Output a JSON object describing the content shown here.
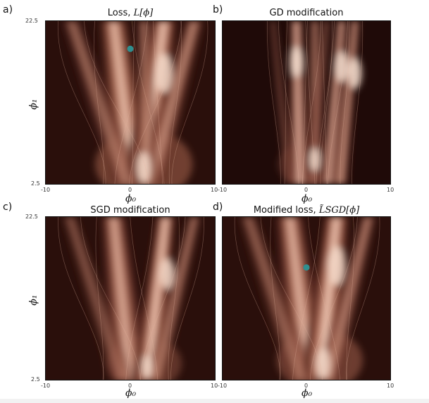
{
  "chart_data": [
    {
      "type": "heatmap",
      "letter": "a)",
      "title": "Loss, ",
      "title_math": "L[ϕ]",
      "xlabel": "ϕ₀",
      "ylabel": "ϕ₁",
      "xlim": [
        -10,
        10
      ],
      "ylim": [
        2.5,
        22.5
      ],
      "x_ticks": [
        "-10",
        "0",
        "10"
      ],
      "y_ticks": [
        "2.5",
        "22.5"
      ],
      "marker": {
        "x": 0,
        "y": 19.1,
        "color": "#2f8f8f"
      },
      "colormap": [
        "#2a0f0b",
        "#5a2a20",
        "#9a5a48",
        "#d8957c",
        "#f6dccb"
      ]
    },
    {
      "type": "heatmap",
      "letter": "b)",
      "title": "GD modification",
      "title_math": "",
      "xlabel": "ϕ₀",
      "ylabel": "",
      "xlim": [
        -10,
        10
      ],
      "ylim": [
        2.5,
        22.5
      ],
      "x_ticks": [
        "-10",
        "0",
        "10"
      ],
      "y_ticks": [],
      "colormap": [
        "#1f0a08",
        "#4a1f18",
        "#8a4a3a",
        "#d08870",
        "#f8e2d2"
      ]
    },
    {
      "type": "heatmap",
      "letter": "c)",
      "title": "SGD modification",
      "title_math": "",
      "xlabel": "ϕ₀",
      "ylabel": "ϕ₁",
      "xlim": [
        -10,
        10
      ],
      "ylim": [
        2.5,
        22.5
      ],
      "x_ticks": [
        "-10",
        "0",
        "10"
      ],
      "y_ticks": [
        "2.5",
        "22.5"
      ],
      "colormap": [
        "#2a0f0b",
        "#5a2a20",
        "#9a5a48",
        "#d8957c",
        "#f6dccb"
      ]
    },
    {
      "type": "heatmap",
      "letter": "d)",
      "title": "Modified loss, ",
      "title_math": "L̃SGD[ϕ]",
      "xlabel": "ϕ₀",
      "ylabel": "",
      "xlim": [
        -10,
        10
      ],
      "ylim": [
        2.5,
        22.5
      ],
      "x_ticks": [
        "-10",
        "0",
        "10"
      ],
      "y_ticks": [],
      "marker": {
        "x": 0,
        "y": 16.3,
        "color": "#2f8f8f"
      },
      "colormap": [
        "#2a0f0b",
        "#5a2a20",
        "#9a5a48",
        "#d8957c",
        "#f6dccb"
      ]
    }
  ]
}
